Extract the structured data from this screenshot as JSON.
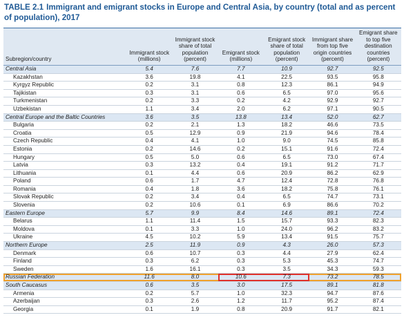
{
  "title": {
    "label": "TABLE 2.1",
    "text": "Immigrant and emigrant stocks in Europe and Central Asia, by country (total and as percent of population), 2017"
  },
  "table": {
    "columns": [
      "Subregion/country",
      "Immigrant stock (millions)",
      "Immigrant stock share of total population (percent)",
      "Emigrant stock (millions)",
      "Emigrant stock share of total population (percent)",
      "Immigrant share from top five origin countries (percent)",
      "Emigrant share to top five destination countries (percent)"
    ],
    "groups": [
      {
        "name": "Central Asia",
        "values": [
          "5.4",
          "7.6",
          "7.7",
          "10.9",
          "92.7",
          "92.5"
        ],
        "rows": [
          {
            "name": "Kazakhstan",
            "values": [
              "3.6",
              "19.8",
              "4.1",
              "22.5",
              "93.5",
              "95.8"
            ]
          },
          {
            "name": "Kyrgyz Republic",
            "values": [
              "0.2",
              "3.1",
              "0.8",
              "12.3",
              "86.1",
              "94.9"
            ]
          },
          {
            "name": "Tajikistan",
            "values": [
              "0.3",
              "3.1",
              "0.6",
              "6.5",
              "97.0",
              "95.6"
            ]
          },
          {
            "name": "Turkmenistan",
            "values": [
              "0.2",
              "3.3",
              "0.2",
              "4.2",
              "92.9",
              "92.7"
            ]
          },
          {
            "name": "Uzbekistan",
            "values": [
              "1.1",
              "3.4",
              "2.0",
              "6.2",
              "97.1",
              "90.5"
            ]
          }
        ]
      },
      {
        "name": "Central Europe and the Baltic Countries",
        "values": [
          "3.6",
          "3.5",
          "13.8",
          "13.4",
          "52.0",
          "62.7"
        ],
        "rows": [
          {
            "name": "Bulgaria",
            "values": [
              "0.2",
              "2.1",
              "1.3",
              "18.2",
              "46.6",
              "73.5"
            ]
          },
          {
            "name": "Croatia",
            "values": [
              "0.5",
              "12.9",
              "0.9",
              "21.9",
              "94.6",
              "78.4"
            ]
          },
          {
            "name": "Czech Republic",
            "values": [
              "0.4",
              "4.1",
              "1.0",
              "9.0",
              "74.5",
              "85.8"
            ]
          },
          {
            "name": "Estonia",
            "values": [
              "0.2",
              "14.6",
              "0.2",
              "15.1",
              "91.6",
              "72.4"
            ]
          },
          {
            "name": "Hungary",
            "values": [
              "0.5",
              "5.0",
              "0.6",
              "6.5",
              "73.0",
              "67.4"
            ]
          },
          {
            "name": "Latvia",
            "values": [
              "0.3",
              "13.2",
              "0.4",
              "19.1",
              "91.2",
              "71.7"
            ]
          },
          {
            "name": "Lithuania",
            "values": [
              "0.1",
              "4.4",
              "0.6",
              "20.9",
              "86.2",
              "62.9"
            ]
          },
          {
            "name": "Poland",
            "values": [
              "0.6",
              "1.7",
              "4.7",
              "12.4",
              "72.8",
              "76.8"
            ]
          },
          {
            "name": "Romania",
            "values": [
              "0.4",
              "1.8",
              "3.6",
              "18.2",
              "75.8",
              "76.1"
            ]
          },
          {
            "name": "Slovak Republic",
            "values": [
              "0.2",
              "3.4",
              "0.4",
              "6.5",
              "74.7",
              "73.1"
            ]
          },
          {
            "name": "Slovenia",
            "values": [
              "0.2",
              "10.6",
              "0.1",
              "6.9",
              "86.6",
              "70.2"
            ]
          }
        ]
      },
      {
        "name": "Eastern Europe",
        "values": [
          "5.7",
          "9.9",
          "8.4",
          "14.6",
          "89.1",
          "72.4"
        ],
        "rows": [
          {
            "name": "Belarus",
            "values": [
              "1.1",
              "11.4",
              "1.5",
              "15.7",
              "93.3",
              "82.3"
            ]
          },
          {
            "name": "Moldova",
            "values": [
              "0.1",
              "3.3",
              "1.0",
              "24.0",
              "96.2",
              "83.2"
            ]
          },
          {
            "name": "Ukraine",
            "values": [
              "4.5",
              "10.2",
              "5.9",
              "13.4",
              "91.5",
              "75.7"
            ]
          }
        ]
      },
      {
        "name": "Northern Europe",
        "values": [
          "2.5",
          "11.9",
          "0.9",
          "4.3",
          "26.0",
          "57.3"
        ],
        "rows": [
          {
            "name": "Denmark",
            "values": [
              "0.6",
              "10.7",
              "0.3",
              "4.4",
              "27.9",
              "62.4"
            ]
          },
          {
            "name": "Finland",
            "values": [
              "0.3",
              "6.2",
              "0.3",
              "5.3",
              "45.3",
              "74.7"
            ]
          },
          {
            "name": "Sweden",
            "values": [
              "1.6",
              "16.1",
              "0.3",
              "3.5",
              "34.3",
              "59.3"
            ]
          }
        ]
      },
      {
        "name": "Russian Federation",
        "values": [
          "11.6",
          "8.0",
          "10.6",
          "7.3",
          "73.2",
          "78.5"
        ],
        "rows": []
      },
      {
        "name": "South Caucasus",
        "values": [
          "0.6",
          "3.5",
          "3.0",
          "17.5",
          "89.1",
          "81.8"
        ],
        "rows": [
          {
            "name": "Armenia",
            "values": [
              "0.2",
              "5.7",
              "1.0",
              "32.3",
              "94.7",
              "87.6"
            ]
          },
          {
            "name": "Azerbaijan",
            "values": [
              "0.3",
              "2.6",
              "1.2",
              "11.7",
              "95.2",
              "87.4"
            ]
          },
          {
            "name": "Georgia",
            "values": [
              "0.1",
              "1.9",
              "0.8",
              "20.9",
              "91.7",
              "82.1"
            ]
          }
        ]
      }
    ]
  }
}
